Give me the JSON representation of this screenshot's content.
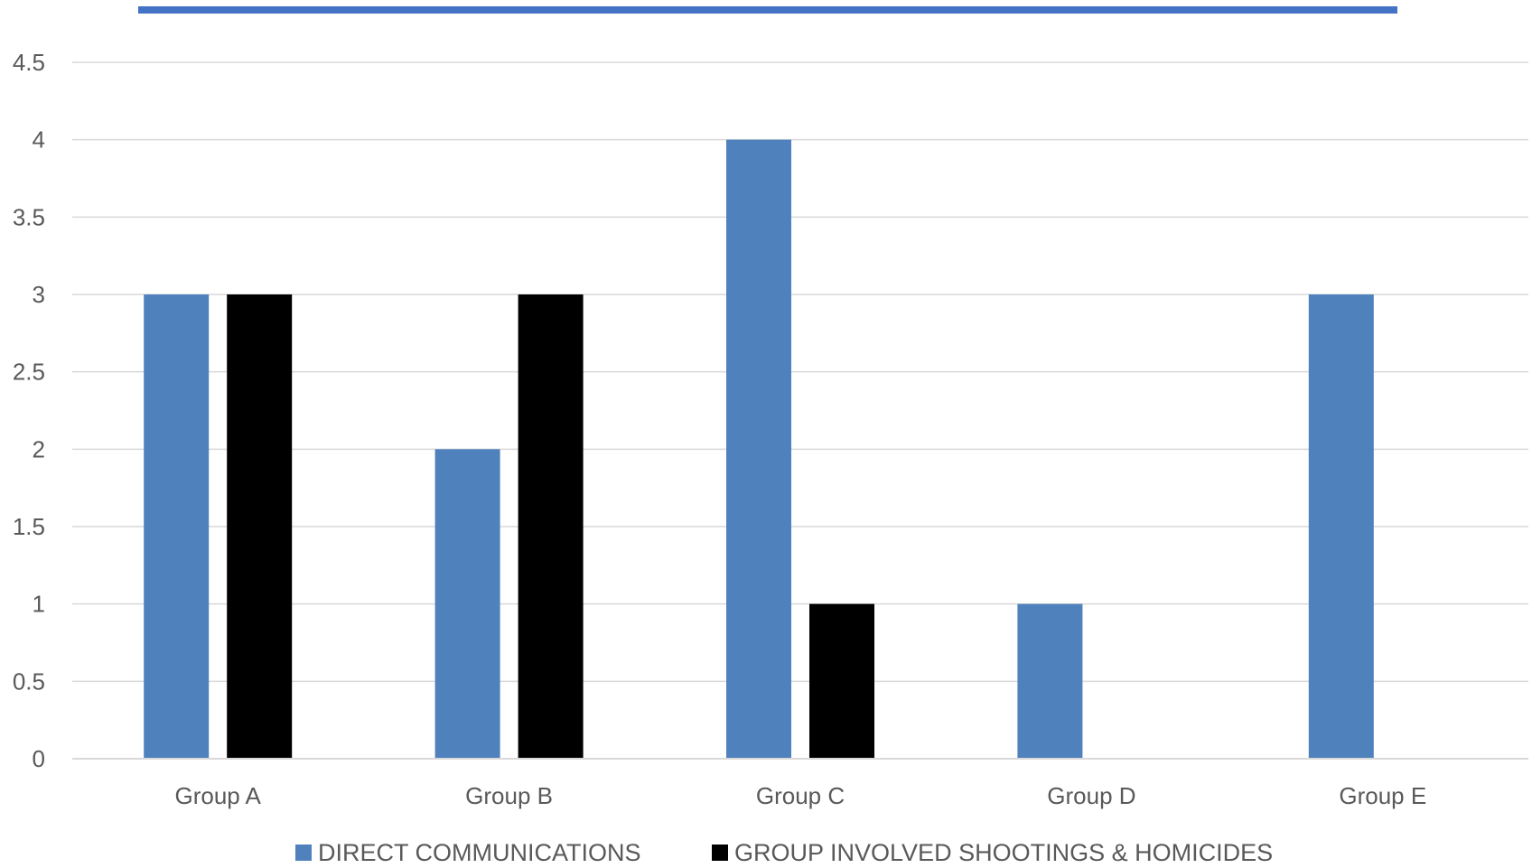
{
  "chart_data": {
    "type": "bar",
    "title": "",
    "xlabel": "",
    "ylabel": "",
    "categories": [
      "Group A",
      "Group B",
      "Group C",
      "Group D",
      "Group E"
    ],
    "series": [
      {
        "name": "DIRECT COMMUNICATIONS",
        "color": "#4F81BD",
        "values": [
          3,
          2,
          4,
          1,
          3
        ]
      },
      {
        "name": "GROUP INVOLVED SHOOTINGS & HOMICIDES",
        "color": "#000000",
        "values": [
          3,
          3,
          1,
          null,
          null
        ]
      }
    ],
    "ylim": [
      0,
      4.5
    ],
    "yticks": [
      "0",
      "0.5",
      "1",
      "1.5",
      "2",
      "2.5",
      "3",
      "3.5",
      "4",
      "4.5"
    ],
    "grid": true,
    "legend_position": "bottom",
    "accent_bar_color": "#4472C4"
  }
}
